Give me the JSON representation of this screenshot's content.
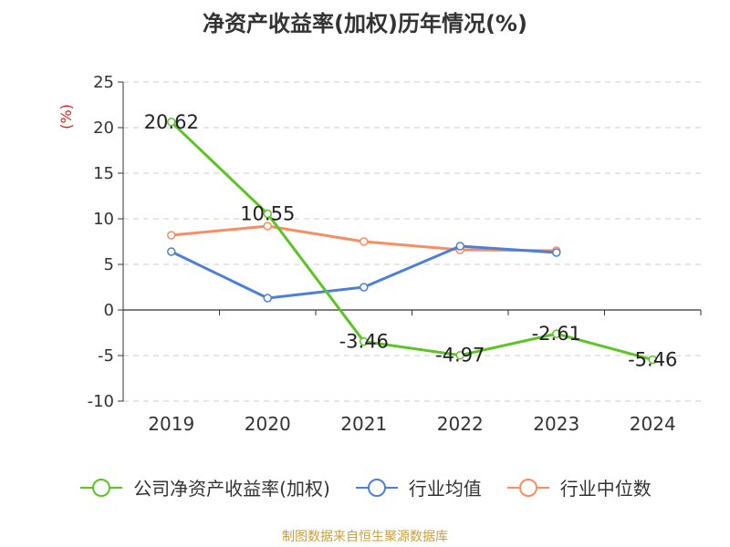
{
  "chart_data": {
    "type": "line",
    "title": "净资产收益率(加权)历年情况(%)",
    "ylabel": "(%)",
    "categories": [
      "2019",
      "2020",
      "2021",
      "2022",
      "2023",
      "2024"
    ],
    "yticks": [
      "25",
      "20",
      "15",
      "10",
      "5",
      "0",
      "-5",
      "-10"
    ],
    "ylim": [
      -10,
      25
    ],
    "grid": true,
    "legend_position": "bottom",
    "series": [
      {
        "name": "公司净资产收益率(加权)",
        "color": "#5cc424",
        "values": [
          20.62,
          10.55,
          -3.46,
          -4.97,
          -2.61,
          -5.46
        ],
        "labels": [
          "20.62",
          "10.55",
          "-3.46",
          "-4.97",
          "-2.61",
          "-5.46"
        ]
      },
      {
        "name": "行业均值",
        "color": "#4e7fd8",
        "values": [
          6.4,
          1.3,
          2.5,
          7.0,
          6.3,
          null
        ]
      },
      {
        "name": "行业中位数",
        "color": "#f78d60",
        "values": [
          8.2,
          9.2,
          7.5,
          6.6,
          6.5,
          null
        ]
      }
    ]
  },
  "source": "制图数据来自恒生聚源数据库"
}
